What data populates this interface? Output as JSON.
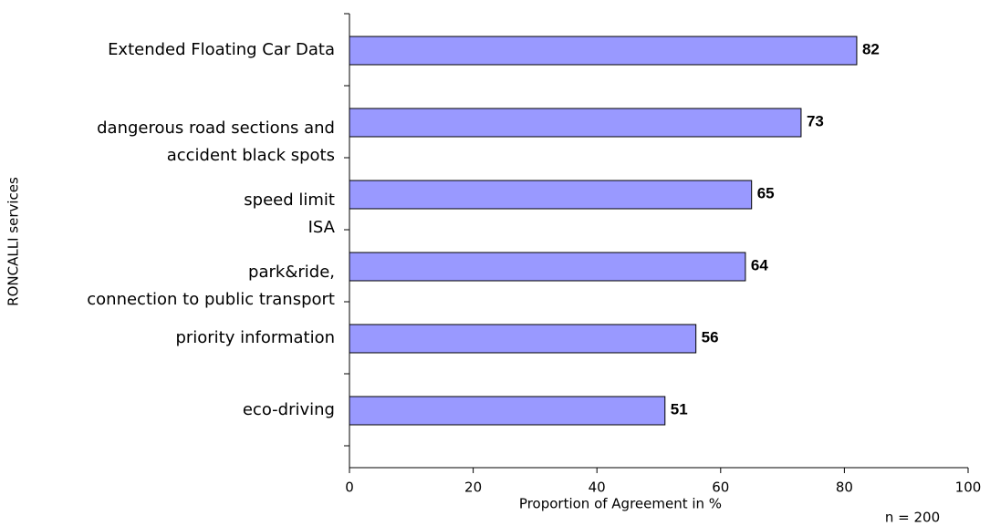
{
  "chart_data": {
    "type": "bar",
    "orientation": "horizontal",
    "categories": [
      "Extended Floating Car Data",
      "dangerous road sections and\naccident black spots",
      "speed limit\nISA",
      "park&ride,\nconnection to public transport",
      "priority information",
      "eco-driving"
    ],
    "values": [
      82,
      73,
      65,
      64,
      56,
      51
    ],
    "color": "#9999ff",
    "xlim": [
      0,
      100
    ],
    "xticks": [
      0,
      20,
      40,
      60,
      80,
      100
    ],
    "xlabel": "Proportion of Agreement in %",
    "ylabel": "RONCALLI services",
    "note": "n = 200"
  }
}
